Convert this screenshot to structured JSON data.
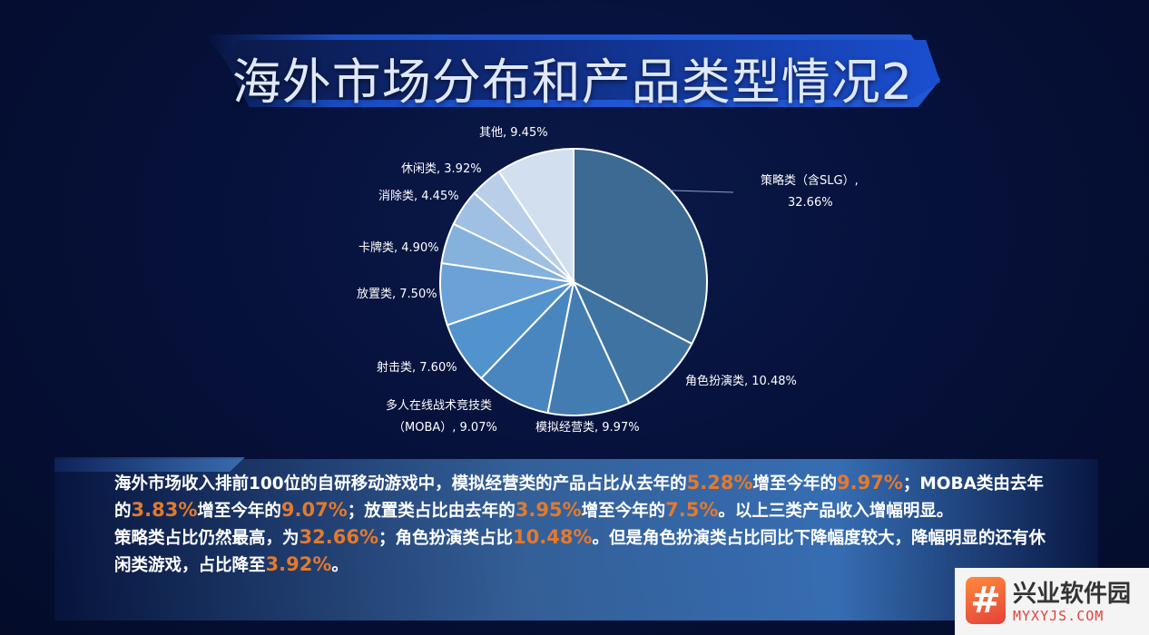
{
  "page": {
    "title": "海外市场分布和产品类型情况2"
  },
  "chart_data": {
    "type": "pie",
    "slices": [
      {
        "name": "策略类（含SLG）",
        "value": 32.66,
        "label_line1": "策略类（含SLG）,",
        "label_line2": "32.66%",
        "color": "#3d6a92"
      },
      {
        "name": "角色扮演类",
        "value": 10.48,
        "label_line1": "角色扮演类, 10.48%",
        "color": "#3f73a2"
      },
      {
        "name": "模拟经营类",
        "value": 9.97,
        "label_line1": "模拟经营类, 9.97%",
        "color": "#437cb1"
      },
      {
        "name": "多人在线战术竞技类（MOBA）",
        "value": 9.07,
        "label_line1": "多人在线战术竞技类",
        "label_line2": "（MOBA）, 9.07%",
        "color": "#4986c0"
      },
      {
        "name": "射击类",
        "value": 7.6,
        "label_line1": "射击类, 7.60%",
        "color": "#5393cd"
      },
      {
        "name": "放置类",
        "value": 7.5,
        "label_line1": "放置类, 7.50%",
        "color": "#6aa1d6"
      },
      {
        "name": "卡牌类",
        "value": 4.9,
        "label_line1": "卡牌类, 4.90%",
        "color": "#85b1dd"
      },
      {
        "name": "消除类",
        "value": 4.45,
        "label_line1": "消除类, 4.45%",
        "color": "#a0c0e3"
      },
      {
        "name": "休闲类",
        "value": 3.92,
        "label_line1": "休闲类, 3.92%",
        "color": "#b9cfe9"
      },
      {
        "name": "其他",
        "value": 9.45,
        "label_line1": "其他, 9.45%",
        "color": "#d2dfef"
      }
    ]
  },
  "summary": {
    "p1_s1": "海外市场收入排前100位的自研移动游戏中，模拟经营类的产品占比从去年的",
    "p1_h1": "5.28%",
    "p1_s2": "增至今年的",
    "p1_h2": "9.97%",
    "p1_s3": "；MOBA类由去年的",
    "p1_h3": "3.83%",
    "p1_s4": "增至今年的",
    "p1_h4": "9.07%",
    "p1_s5": "；放置类占比由去年的",
    "p1_h5": "3.95%",
    "p1_s6": "增至今年的",
    "p1_h6": "7.5%",
    "p1_s7": "。以上三类产品收入增幅明显。",
    "p2_s1": "策略类占比仍然最高，为",
    "p2_h1": "32.66%",
    "p2_s2": "；角色扮演类占比",
    "p2_h2": "10.48%",
    "p2_s3": "。但是角色扮演类占比同比下降幅度较大，降幅明显的还有休闲类游戏，占比降至",
    "p2_h3": "3.92%",
    "p2_s4": "。"
  },
  "watermark": {
    "icon": "hash-icon",
    "icon_glyph": "#",
    "name": "兴业软件园",
    "domain": "MYXYJS.COM"
  }
}
